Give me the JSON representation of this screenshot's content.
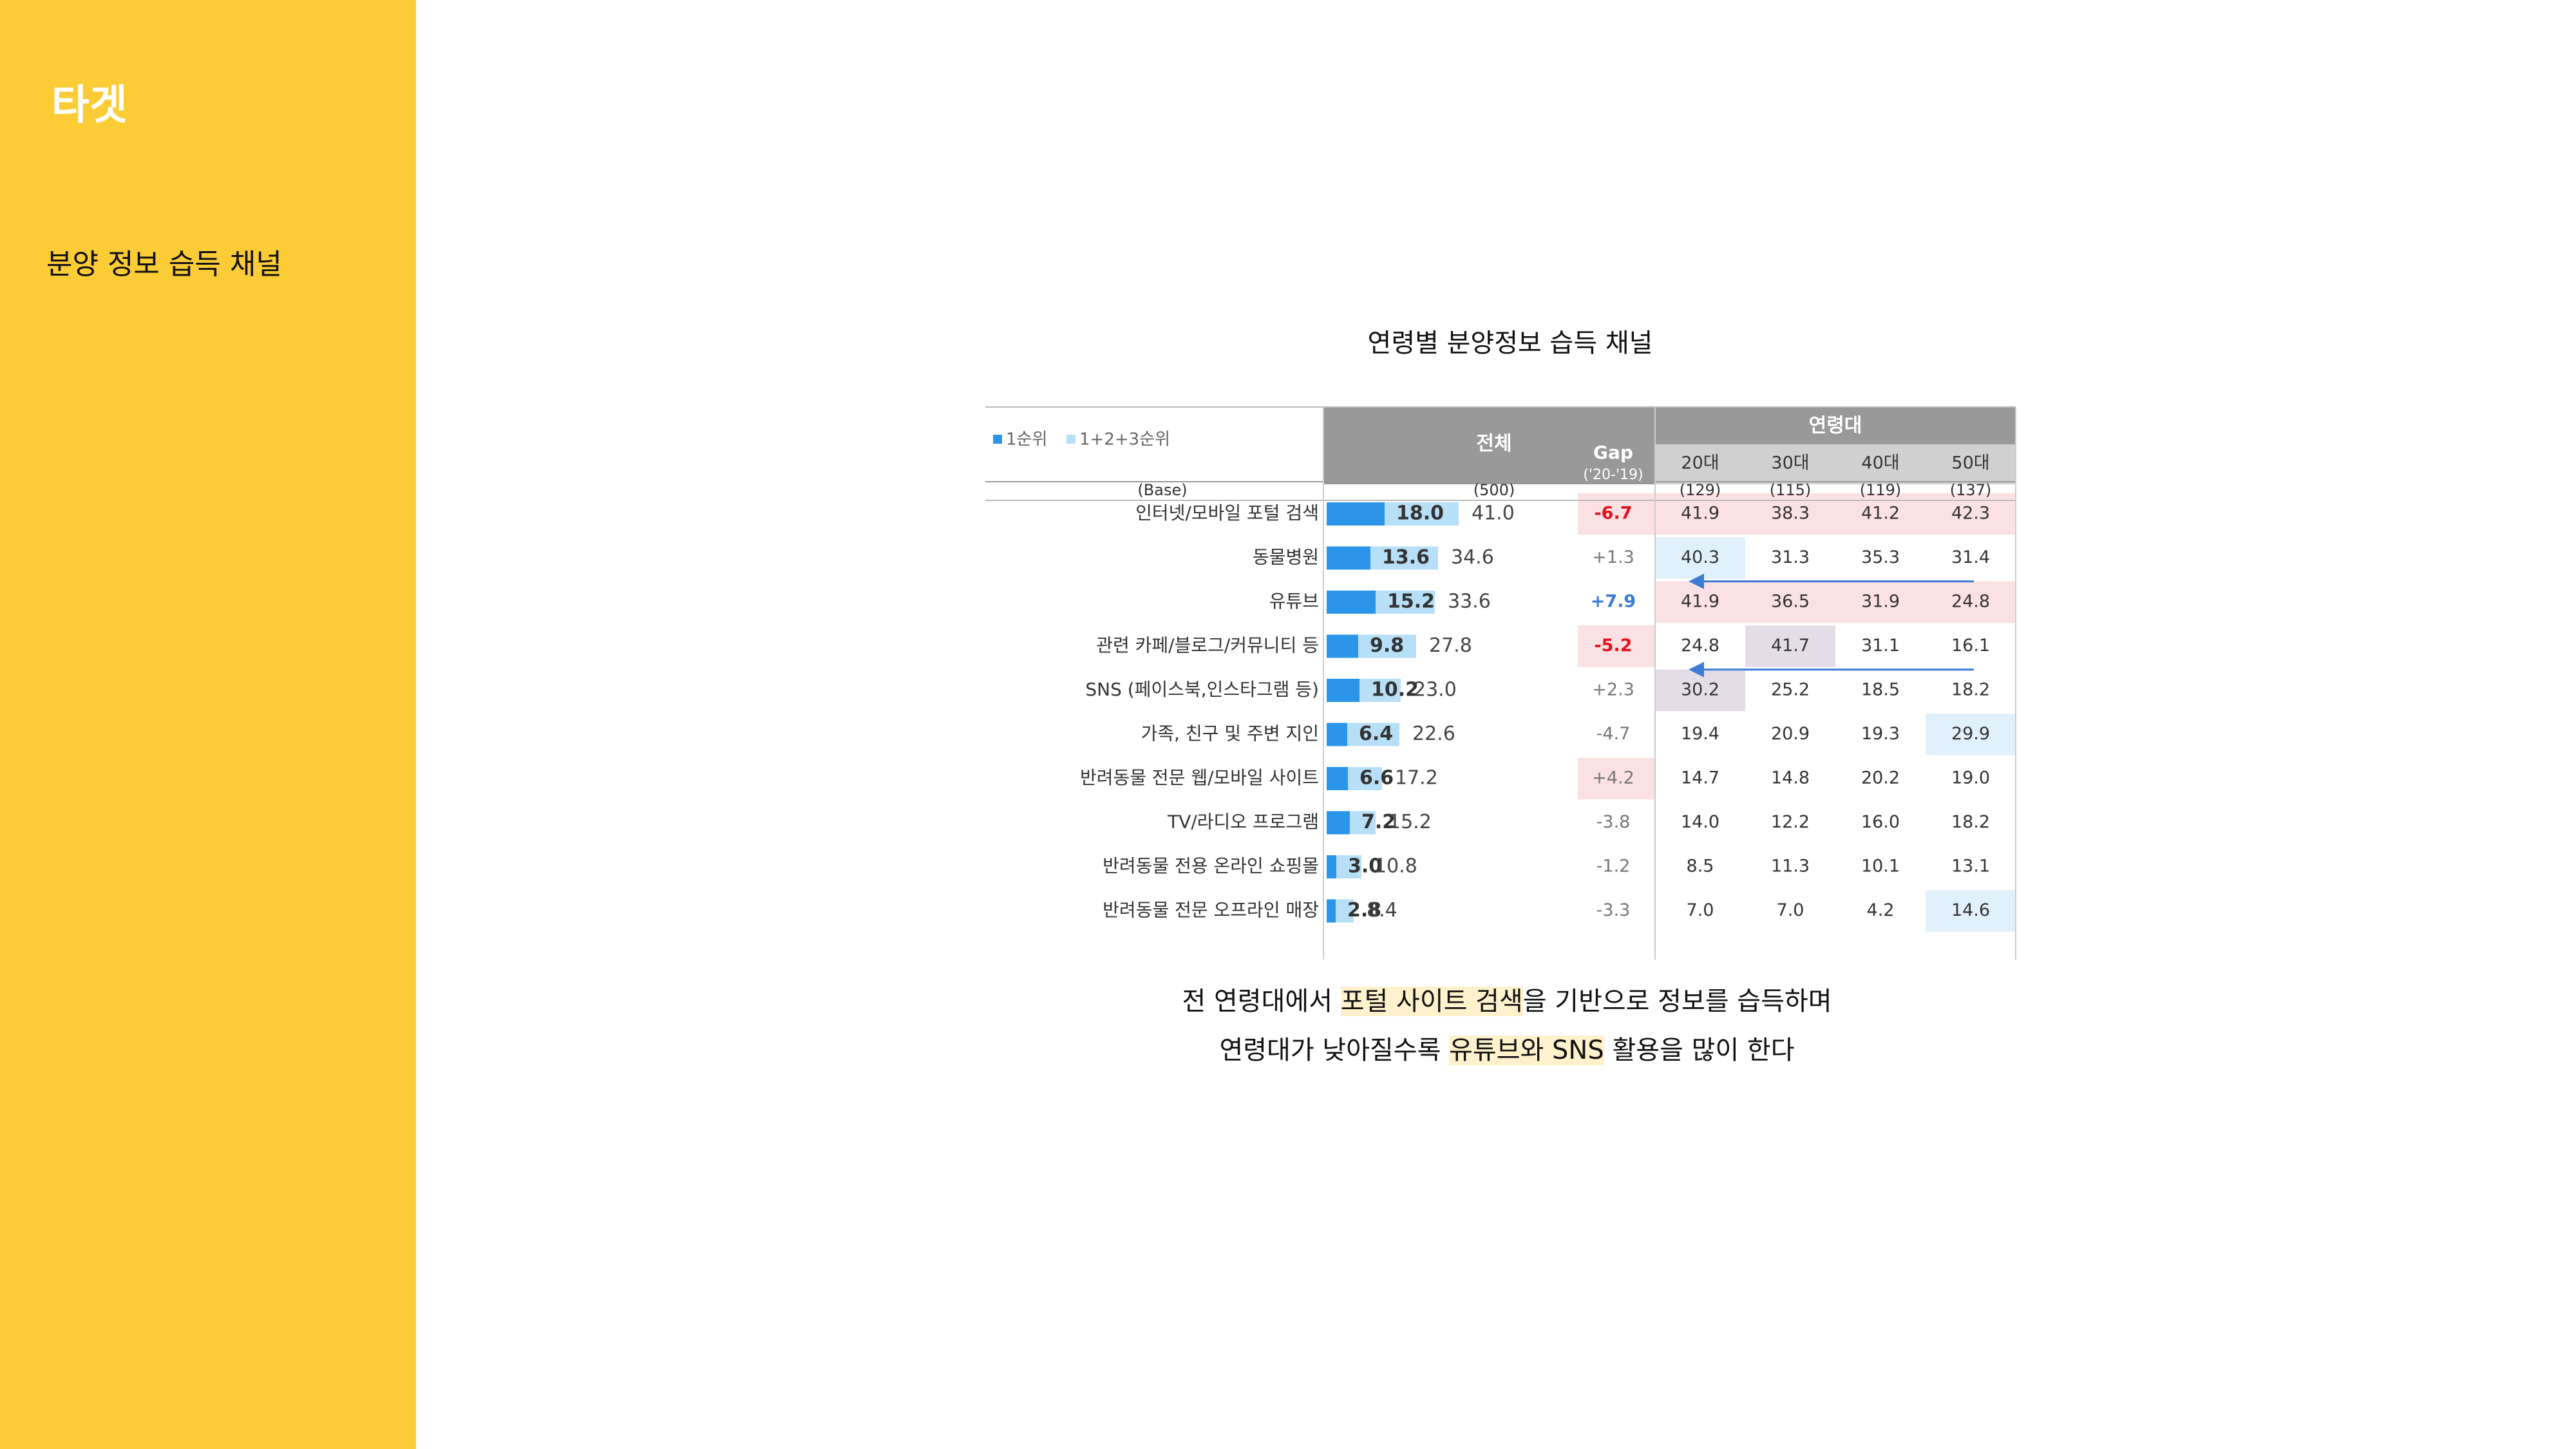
{
  "sidebar": {
    "title": "타겟",
    "subtitle": "분양 정보 습득 채널"
  },
  "chart_data": {
    "type": "table",
    "title": "연령별 분양정보 습득 채널",
    "legend": {
      "first_rank": "1순위",
      "top3_rank": "1+2+3순위"
    },
    "headers": {
      "total": "전체",
      "gap": "Gap",
      "gap_sub": "('20-'19)",
      "age_group": "연령대",
      "ages": [
        "20대",
        "30대",
        "40대",
        "50대"
      ]
    },
    "base": {
      "label": "(Base)",
      "total": "(500)",
      "ages": [
        "(129)",
        "(115)",
        "(119)",
        "(137)"
      ]
    },
    "rows": [
      {
        "label": "인터넷/모바일 포털 검색",
        "first": 18.0,
        "top3": 41.0,
        "gap": "-6.7",
        "ages": [
          "41.9",
          "38.3",
          "41.2",
          "42.3"
        ]
      },
      {
        "label": "동물병원",
        "first": 13.6,
        "top3": 34.6,
        "gap": "+1.3",
        "ages": [
          "40.3",
          "31.3",
          "35.3",
          "31.4"
        ]
      },
      {
        "label": "유튜브",
        "first": 15.2,
        "top3": 33.6,
        "gap": "+7.9",
        "ages": [
          "41.9",
          "36.5",
          "31.9",
          "24.8"
        ]
      },
      {
        "label": "관련 카페/블로그/커뮤니티 등",
        "first": 9.8,
        "top3": 27.8,
        "gap": "-5.2",
        "ages": [
          "24.8",
          "41.7",
          "31.1",
          "16.1"
        ]
      },
      {
        "label": "SNS (페이스북,인스타그램 등)",
        "first": 10.2,
        "top3": 23.0,
        "gap": "+2.3",
        "ages": [
          "30.2",
          "25.2",
          "18.5",
          "18.2"
        ]
      },
      {
        "label": "가족, 친구 및 주변 지인",
        "first": 6.4,
        "top3": 22.6,
        "gap": "-4.7",
        "ages": [
          "19.4",
          "20.9",
          "19.3",
          "29.9"
        ]
      },
      {
        "label": "반려동물 전문 웹/모바일 사이트",
        "first": 6.6,
        "top3": 17.2,
        "gap": "+4.2",
        "ages": [
          "14.7",
          "14.8",
          "20.2",
          "19.0"
        ]
      },
      {
        "label": "TV/라디오 프로그램",
        "first": 7.2,
        "top3": 15.2,
        "gap": "-3.8",
        "ages": [
          "14.0",
          "12.2",
          "16.0",
          "18.2"
        ]
      },
      {
        "label": "반려동물 전용 온라인 쇼핑몰",
        "first": 3.0,
        "top3": 10.8,
        "gap": "-1.2",
        "ages": [
          "8.5",
          "11.3",
          "10.1",
          "13.1"
        ]
      },
      {
        "label": "반려동물 전문 오프라인 매장",
        "first": 2.8,
        "top3": 8.4,
        "gap": "-3.3",
        "ages": [
          "7.0",
          "7.0",
          "4.2",
          "14.6"
        ]
      }
    ],
    "highlights": {
      "gap_red_rows": [
        0,
        3
      ],
      "gap_pink_rows": [
        6
      ],
      "gap_blue_rows": [
        2
      ],
      "age_red_rows": [
        0,
        2
      ],
      "age_cells_blue": [
        [
          1,
          0
        ],
        [
          5,
          3
        ],
        [
          9,
          3
        ]
      ],
      "age_cells_purple": [
        [
          3,
          1
        ],
        [
          4,
          0
        ]
      ],
      "arrows": [
        {
          "row": 2,
          "from_age": 3,
          "to_age": 0
        },
        {
          "row": 4,
          "from_age": 3,
          "to_age": 0
        }
      ]
    },
    "colors": {
      "first_bar": "#2B95E9",
      "top3_bar": "#B7E0F8",
      "header_gray": "#999999",
      "age_header_gray": "#D0D0D0",
      "red_text": "#E0141E",
      "blue_text": "#3C7BD6",
      "red_bg": "#FCE1E4",
      "blue_bg": "#E0F1FC",
      "purple_bg": "#E4DDE8"
    }
  },
  "captions": {
    "line1_a": "전 연령대에서 ",
    "line1_hl": "포털 사이트 검색",
    "line1_b": "을 기반으로 정보를 습득하며",
    "line2_a": "연령대가 낮아질수록 ",
    "line2_hl": "유튜브와 SNS",
    "line2_b": " 활용을 많이 한다"
  }
}
